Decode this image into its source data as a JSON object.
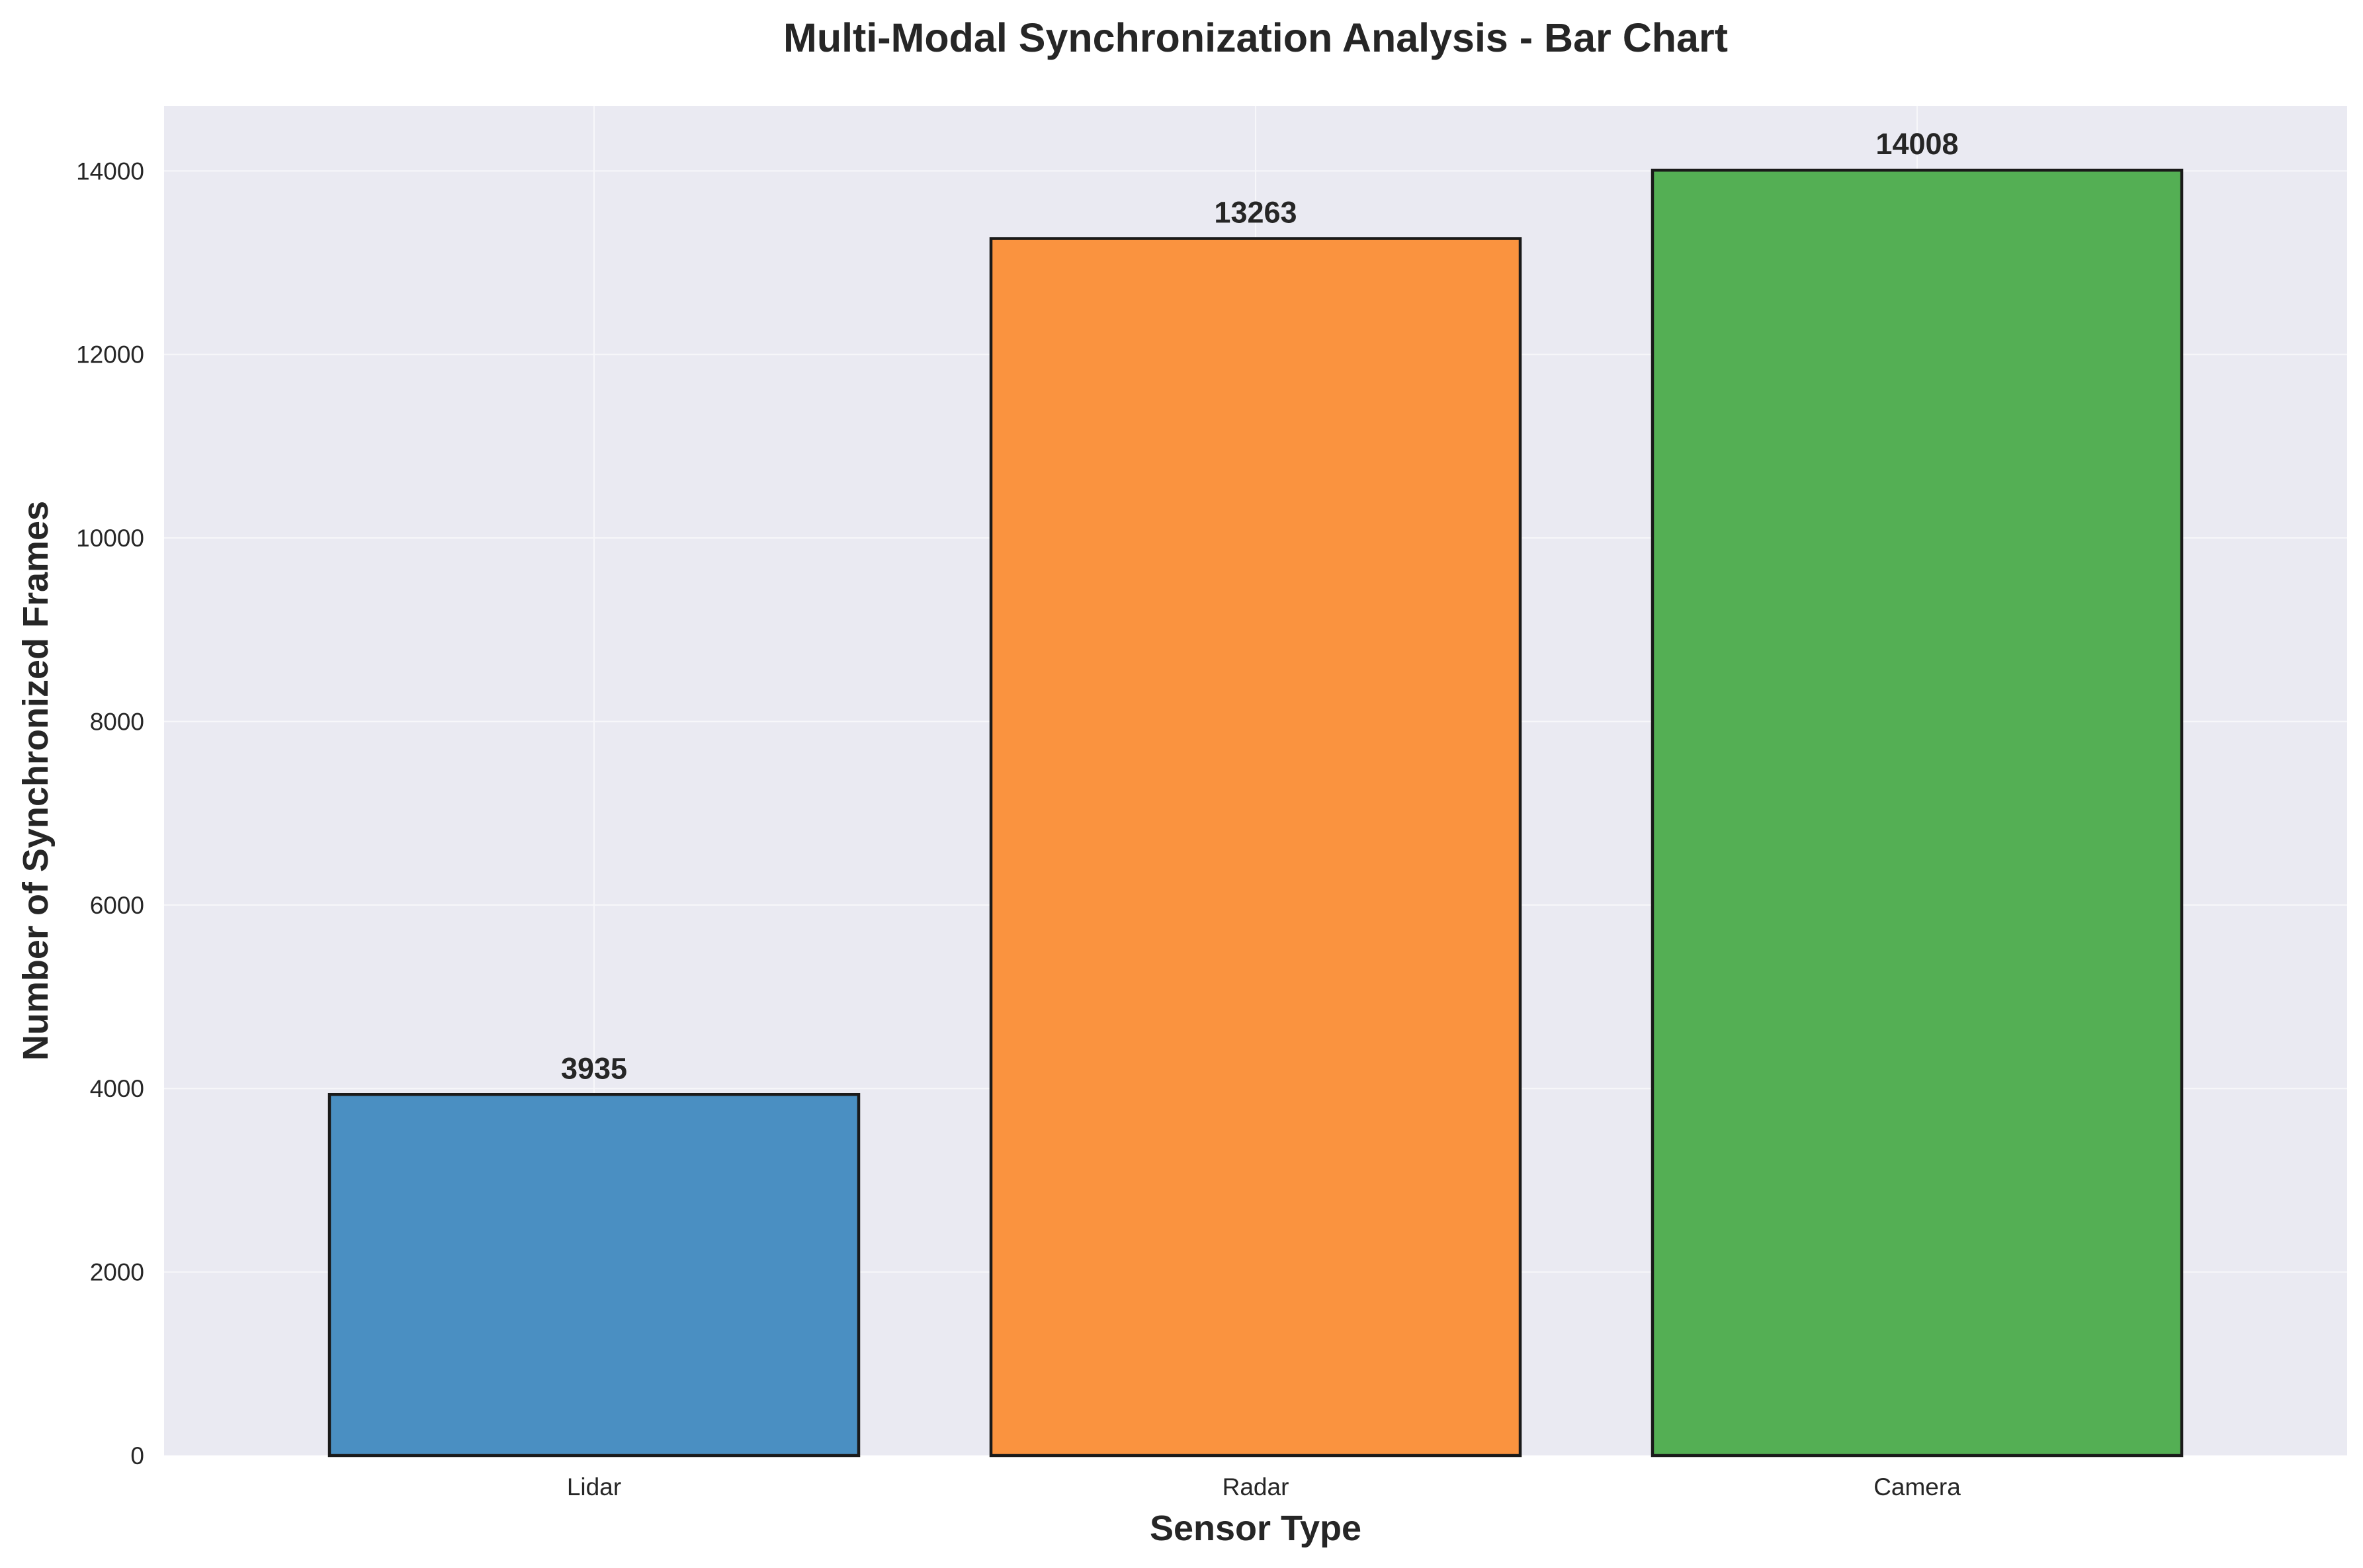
{
  "chart_data": {
    "type": "bar",
    "title": "Multi-Modal Synchronization Analysis - Bar Chart",
    "xlabel": "Sensor Type",
    "ylabel": "Number of Synchronized Frames",
    "categories": [
      "Lidar",
      "Radar",
      "Camera"
    ],
    "values": [
      3935,
      13263,
      14008
    ],
    "data_labels": [
      "3935",
      "13263",
      "14008"
    ],
    "colors": [
      "#4a8fc2",
      "#fa933f",
      "#54af54"
    ],
    "ylim": [
      0,
      14709
    ],
    "yticks": [
      0,
      2000,
      4000,
      6000,
      8000,
      10000,
      12000,
      14000
    ],
    "ytick_labels": [
      "0",
      "2000",
      "4000",
      "6000",
      "8000",
      "10000",
      "12000",
      "14000"
    ],
    "grid": true,
    "background": "#eaeaf2"
  }
}
